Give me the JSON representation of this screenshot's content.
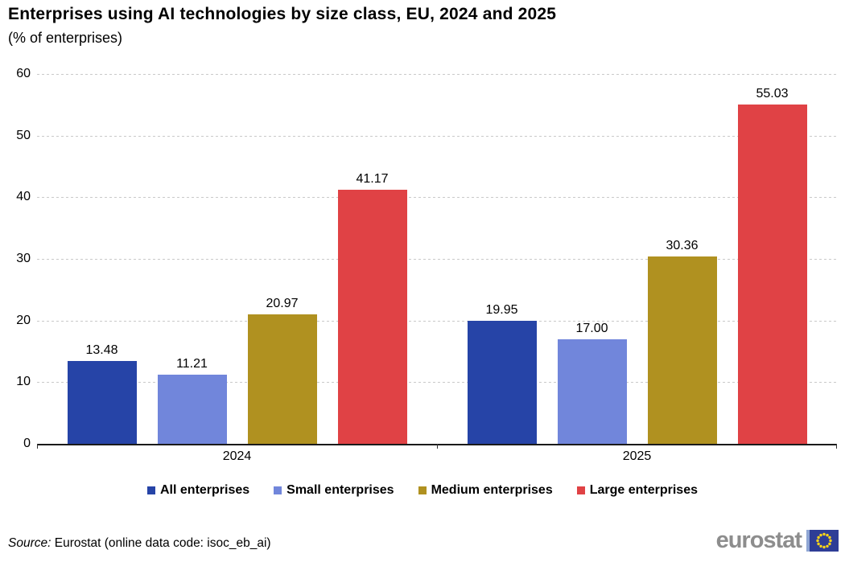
{
  "title": "Enterprises using AI technologies by size class, EU, 2024 and 2025",
  "subtitle": "(% of enterprises)",
  "source": {
    "prefix": "Source:",
    "text": "Eurostat (online data code: isoc_eb_ai)"
  },
  "logo": {
    "text": "eurostat"
  },
  "chart_data": {
    "type": "bar",
    "categories": [
      "2024",
      "2025"
    ],
    "series": [
      {
        "name": "All enterprises",
        "color": "#2644A7",
        "values": [
          13.48,
          19.95
        ]
      },
      {
        "name": "Small enterprises",
        "color": "#7186DB",
        "values": [
          11.21,
          17.0
        ]
      },
      {
        "name": "Medium enterprises",
        "color": "#B09120",
        "values": [
          20.97,
          30.36
        ]
      },
      {
        "name": "Large enterprises",
        "color": "#E04245",
        "values": [
          41.17,
          55.03
        ]
      }
    ],
    "value_label_decimals": 2,
    "ylim": [
      0,
      60
    ],
    "yticks": [
      0,
      10,
      20,
      30,
      40,
      50,
      60
    ],
    "grid": "horizontal-dashed",
    "legend_position": "bottom"
  }
}
